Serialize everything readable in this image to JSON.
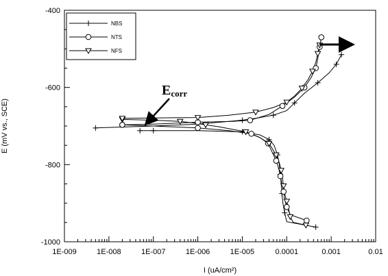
{
  "chart_data": {
    "type": "scatter",
    "xscale": "log",
    "xlim": [
      1e-09,
      0.01
    ],
    "ylim": [
      -1000,
      -400
    ],
    "xlabel": "I (uA/cm²)",
    "ylabel": "E (mV vs., SCE)",
    "xticks": [
      "1E-009",
      "1E-008",
      "1E-007",
      "1E-006",
      "1E-005",
      "0.0001",
      "0.001",
      "0.01"
    ],
    "yticks": [
      -400,
      -600,
      -800,
      -1000
    ],
    "grid": false,
    "legend_position": "top-left",
    "annotation": {
      "text": "E",
      "subscript": "corr"
    },
    "series": [
      {
        "name": "NBS",
        "marker": "plus",
        "cathodic": [
          [
            0.00045,
            -962
          ],
          [
            0.0001,
            -948
          ],
          [
            9e-05,
            -925
          ],
          [
            8.2e-05,
            -900
          ],
          [
            7.8e-05,
            -875
          ],
          [
            7.5e-05,
            -850
          ],
          [
            7.2e-05,
            -825
          ],
          [
            6.8e-05,
            -800
          ],
          [
            6.2e-05,
            -775
          ],
          [
            5.2e-05,
            -750
          ],
          [
            4e-05,
            -735
          ],
          [
            2.5e-05,
            -723
          ],
          [
            1e-05,
            -715
          ],
          [
            1e-06,
            -712
          ],
          [
            1e-07,
            -712
          ],
          [
            5e-07,
            -712
          ],
          [
            5e-08,
            -712
          ]
        ],
        "anodic": [
          [
            5e-09,
            -705
          ],
          [
            1e-07,
            -700
          ],
          [
            1e-06,
            -695
          ],
          [
            5e-06,
            -688
          ],
          [
            1e-05,
            -685
          ],
          [
            2e-05,
            -680
          ],
          [
            5e-05,
            -672
          ],
          [
            0.0001,
            -660
          ],
          [
            0.00015,
            -640
          ],
          [
            0.00025,
            -615
          ],
          [
            0.0005,
            -588
          ],
          [
            0.0009,
            -562
          ],
          [
            0.0013,
            -540
          ],
          [
            0.0017,
            -515
          ]
        ]
      },
      {
        "name": "NTS",
        "marker": "circle",
        "cathodic": [
          [
            0.00028,
            -945
          ],
          [
            0.00012,
            -930
          ],
          [
            0.0001,
            -910
          ],
          [
            9e-05,
            -890
          ],
          [
            8.5e-05,
            -870
          ],
          [
            7.8e-05,
            -850
          ],
          [
            7.2e-05,
            -830
          ],
          [
            6.6e-05,
            -810
          ],
          [
            5.8e-05,
            -790
          ],
          [
            4.8e-05,
            -770
          ],
          [
            3.8e-05,
            -745
          ],
          [
            2.5e-05,
            -730
          ],
          [
            1.6e-05,
            -720
          ],
          [
            5e-06,
            -712
          ],
          [
            1e-06,
            -705
          ],
          [
            1e-07,
            -700
          ],
          [
            2e-08,
            -697
          ]
        ],
        "anodic": [
          [
            2e-08,
            -697
          ],
          [
            1e-07,
            -695
          ],
          [
            1e-06,
            -690
          ],
          [
            6e-06,
            -688
          ],
          [
            1.5e-05,
            -685
          ],
          [
            4e-05,
            -670
          ],
          [
            8e-05,
            -648
          ],
          [
            0.00015,
            -625
          ],
          [
            0.00025,
            -600
          ],
          [
            0.00035,
            -575
          ],
          [
            0.00045,
            -550
          ],
          [
            0.0005,
            -525
          ],
          [
            0.00055,
            -495
          ],
          [
            0.0006,
            -470
          ]
        ]
      },
      {
        "name": "NFS",
        "marker": "triangle-down",
        "cathodic": [
          [
            0.00027,
            -957
          ],
          [
            0.00014,
            -950
          ],
          [
            0.00012,
            -935
          ],
          [
            0.00011,
            -915
          ],
          [
            0.0001,
            -895
          ],
          [
            9e-05,
            -875
          ],
          [
            8.5e-05,
            -855
          ],
          [
            8e-05,
            -835
          ],
          [
            7.5e-05,
            -815
          ],
          [
            6.8e-05,
            -795
          ],
          [
            5.8e-05,
            -775
          ],
          [
            4.8e-05,
            -760
          ],
          [
            4e-05,
            -745
          ],
          [
            2.5e-05,
            -730
          ],
          [
            1.2e-05,
            -715
          ],
          [
            3e-06,
            -702
          ],
          [
            1.5e-06,
            -697
          ],
          [
            8e-07,
            -692
          ],
          [
            4e-07,
            -688
          ],
          [
            1e-07,
            -685
          ],
          [
            2e-08,
            -683
          ]
        ],
        "anodic": [
          [
            2e-08,
            -680
          ],
          [
            1e-07,
            -679
          ],
          [
            1e-06,
            -678
          ],
          [
            5e-06,
            -672
          ],
          [
            2e-05,
            -664
          ],
          [
            5e-05,
            -652
          ],
          [
            0.0001,
            -638
          ],
          [
            0.00015,
            -622
          ],
          [
            0.00022,
            -602
          ],
          [
            0.0003,
            -580
          ],
          [
            0.00038,
            -558
          ],
          [
            0.00045,
            -535
          ],
          [
            0.0005,
            -512
          ],
          [
            0.00055,
            -490
          ]
        ]
      }
    ]
  }
}
